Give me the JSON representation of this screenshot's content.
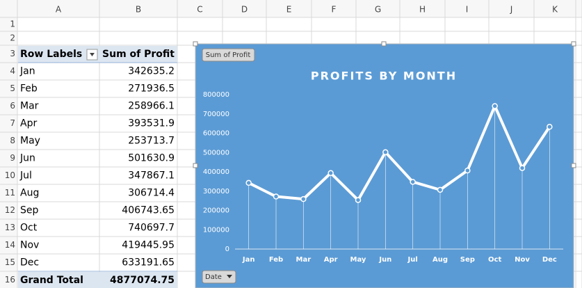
{
  "columns": [
    "A",
    "B",
    "C",
    "D",
    "E",
    "F",
    "G",
    "H",
    "I",
    "J",
    "K"
  ],
  "row_numbers": [
    "1",
    "2",
    "3",
    "4",
    "5",
    "6",
    "7",
    "8",
    "9",
    "10",
    "11",
    "12",
    "13",
    "14",
    "15",
    "16"
  ],
  "pivot": {
    "headers": [
      "Row Labels",
      "Sum of Profit"
    ],
    "rows": [
      [
        "Jan",
        342635.2
      ],
      [
        "Feb",
        271936.5
      ],
      [
        "Mar",
        258966.1
      ],
      [
        "Apr",
        393531.9
      ],
      [
        "May",
        253713.7
      ],
      [
        "Jun",
        501630.9
      ],
      [
        "Jul",
        347867.1
      ],
      [
        "Aug",
        306714.4
      ],
      [
        "Sep",
        406743.65
      ],
      [
        "Oct",
        740697.7
      ],
      [
        "Nov",
        419445.95
      ],
      [
        "Dec",
        633191.65
      ]
    ],
    "total": [
      "Grand Total",
      4877074.75
    ]
  },
  "chart_data": {
    "type": "line",
    "title": "PROFITS BY MONTH",
    "value_button": "Sum of Profit",
    "axis_button": "Date",
    "categories": [
      "Jan",
      "Feb",
      "Mar",
      "Apr",
      "May",
      "Jun",
      "Jul",
      "Aug",
      "Sep",
      "Oct",
      "Nov",
      "Dec"
    ],
    "values": [
      342635.2,
      271936.5,
      258966.1,
      393531.9,
      253713.7,
      501630.9,
      347867.1,
      306714.4,
      406743.65,
      740697.7,
      419445.95,
      633191.65
    ],
    "color": "#ffffff",
    "background": "#5b9bd5",
    "ylim": [
      0,
      800000
    ],
    "yticks": [
      0,
      100000,
      200000,
      300000,
      400000,
      500000,
      600000,
      700000,
      800000
    ],
    "drop_lines": true
  }
}
